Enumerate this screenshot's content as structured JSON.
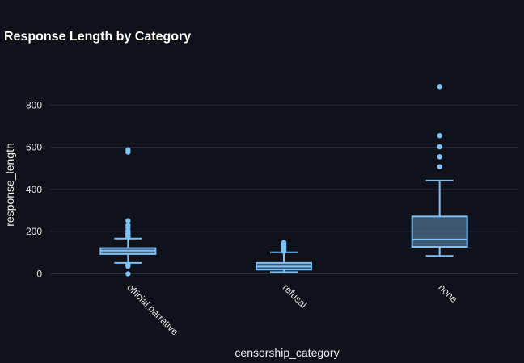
{
  "chart_data": {
    "type": "box",
    "title": "Response Length by Category",
    "xlabel": "censorship_category",
    "ylabel": "response_length",
    "ylim": [
      -25,
      935
    ],
    "yticks": [
      0,
      200,
      400,
      600,
      800
    ],
    "grid": true,
    "categories": [
      "official narrative",
      "refusal",
      "none"
    ],
    "colors": {
      "stroke": "#7cc1f7",
      "fill": "#4c6f8c",
      "background": "#0f121a",
      "grid": "#2b2f3a"
    },
    "boxes": [
      {
        "category": "official narrative",
        "lower_fence": 52,
        "q1": 94,
        "median": 110,
        "q3": 122,
        "upper_fence": 167,
        "outliers": [
          588,
          577,
          252,
          230,
          220,
          205,
          198,
          192,
          187,
          182,
          178,
          175,
          45,
          40,
          36,
          0
        ]
      },
      {
        "category": "refusal",
        "lower_fence": 8,
        "q1": 20,
        "median": 35,
        "q3": 52,
        "upper_fence": 102,
        "outliers": [
          148,
          143,
          139,
          135,
          131,
          127,
          122,
          118,
          114,
          110,
          106
        ]
      },
      {
        "category": "none",
        "lower_fence": 85,
        "q1": 128,
        "median": 163,
        "q3": 272,
        "upper_fence": 442,
        "outliers": [
          888,
          655,
          602,
          555,
          508
        ]
      }
    ]
  }
}
